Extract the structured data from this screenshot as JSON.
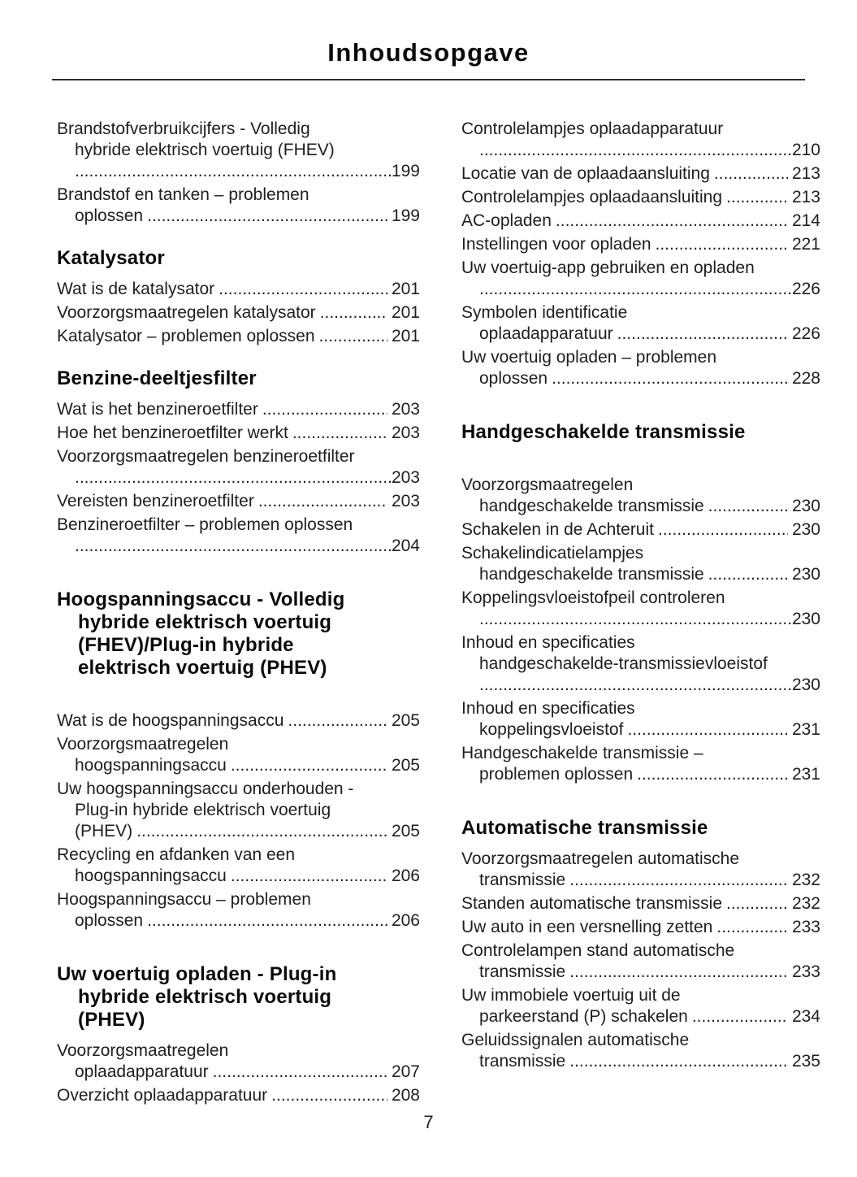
{
  "header": {
    "title": "Inhoudsopgave"
  },
  "footer": {
    "page_number": "7"
  },
  "colors": {
    "background": "#ffffff",
    "text": "#1e1e1e",
    "heading": "#0b0b0b",
    "rule": "#2e2e2e"
  },
  "columns": [
    {
      "blocks": [
        {
          "type": "entry",
          "label": "Brandstofverbruikcijfers - Volledig\nhybride elektrisch voertuig (FHEV)",
          "page": "199",
          "dots_own_line": true
        },
        {
          "type": "entry",
          "label": "Brandstof en tanken – problemen\noplossen",
          "page": "199"
        },
        {
          "type": "heading",
          "text": "Katalysator"
        },
        {
          "type": "entry",
          "label": "Wat is de katalysator",
          "page": "201"
        },
        {
          "type": "entry",
          "label": "Voorzorgsmaatregelen katalysator",
          "page": "201"
        },
        {
          "type": "entry",
          "label": "Katalysator – problemen oplossen",
          "page": "201"
        },
        {
          "type": "heading",
          "text": "Benzine-deeltjesfilter"
        },
        {
          "type": "entry",
          "label": "Wat is het benzineroetfilter",
          "page": "203"
        },
        {
          "type": "entry",
          "label": "Hoe het benzineroetfilter werkt",
          "page": "203"
        },
        {
          "type": "entry",
          "label": "Voorzorgsmaatregelen benzineroetfilter",
          "page": "203",
          "dots_own_line": true
        },
        {
          "type": "entry",
          "label": "Vereisten benzineroetfilter",
          "page": "203"
        },
        {
          "type": "entry",
          "label": "Benzineroetfilter – problemen oplossen",
          "page": "204",
          "dots_own_line": true
        },
        {
          "type": "heading",
          "text": "Hoogspanningsaccu - Volledig\nhybride elektrisch voertuig\n(FHEV)/Plug-in hybride\nelektrisch voertuig (PHEV)",
          "big_top": true,
          "gap_after": true
        },
        {
          "type": "entry",
          "label": "Wat is de hoogspanningsaccu",
          "page": "205"
        },
        {
          "type": "entry",
          "label": "Voorzorgsmaatregelen\nhoogspanningsaccu",
          "page": "205"
        },
        {
          "type": "entry",
          "label": "Uw hoogspanningsaccu onderhouden -\nPlug-in hybride elektrisch voertuig\n(PHEV)",
          "page": "205"
        },
        {
          "type": "entry",
          "label": "Recycling en afdanken van een\nhoogspanningsaccu",
          "page": "206"
        },
        {
          "type": "entry",
          "label": "Hoogspanningsaccu – problemen\noplossen",
          "page": "206"
        },
        {
          "type": "heading",
          "text": "Uw voertuig opladen - Plug-in\nhybride elektrisch voertuig\n(PHEV)",
          "big_top": true
        },
        {
          "type": "entry",
          "label": "Voorzorgsmaatregelen\noplaadapparatuur",
          "page": "207"
        },
        {
          "type": "entry",
          "label": "Overzicht oplaadapparatuur",
          "page": "208"
        }
      ]
    },
    {
      "blocks": [
        {
          "type": "entry",
          "label": "Controlelampjes oplaadapparatuur",
          "page": "210",
          "dots_own_line": true
        },
        {
          "type": "entry",
          "label": "Locatie van de oplaadaansluiting",
          "page": "213"
        },
        {
          "type": "entry",
          "label": "Controlelampjes oplaadaansluiting",
          "page": "213"
        },
        {
          "type": "entry",
          "label": "AC-opladen",
          "page": "214"
        },
        {
          "type": "entry",
          "label": "Instellingen voor opladen",
          "page": "221"
        },
        {
          "type": "entry",
          "label": "Uw voertuig-app gebruiken en opladen",
          "page": "226",
          "dots_own_line": true
        },
        {
          "type": "entry",
          "label": "Symbolen identificatie\noplaadapparatuur",
          "page": "226"
        },
        {
          "type": "entry",
          "label": "Uw voertuig opladen – problemen\noplossen",
          "page": "228"
        },
        {
          "type": "heading",
          "text": "Handgeschakelde transmissie",
          "big_top": true,
          "gap_after": true
        },
        {
          "type": "entry",
          "label": "Voorzorgsmaatregelen\nhandgeschakelde transmissie",
          "page": "230"
        },
        {
          "type": "entry",
          "label": "Schakelen in de Achteruit",
          "page": "230"
        },
        {
          "type": "entry",
          "label": "Schakelindicatielampjes\nhandgeschakelde transmissie",
          "page": "230"
        },
        {
          "type": "entry",
          "label": "Koppelingsvloeistofpeil controleren",
          "page": "230",
          "dots_own_line": true
        },
        {
          "type": "entry",
          "label": "Inhoud en specificaties\nhandgeschakelde-transmissievloeistof",
          "page": "230",
          "dots_own_line": true
        },
        {
          "type": "entry",
          "label": "Inhoud en specificaties\nkoppelingsvloeistof",
          "page": "231"
        },
        {
          "type": "entry",
          "label": "Handgeschakelde transmissie –\nproblemen oplossen",
          "page": "231"
        },
        {
          "type": "heading",
          "text": "Automatische transmissie",
          "big_top": true
        },
        {
          "type": "entry",
          "label": "Voorzorgsmaatregelen automatische\ntransmissie",
          "page": "232"
        },
        {
          "type": "entry",
          "label": "Standen automatische transmissie",
          "page": "232"
        },
        {
          "type": "entry",
          "label": "Uw auto in een versnelling zetten",
          "page": "233"
        },
        {
          "type": "entry",
          "label": "Controlelampen stand automatische\ntransmissie",
          "page": "233"
        },
        {
          "type": "entry",
          "label": "Uw immobiele voertuig uit de\nparkeerstand (P) schakelen",
          "page": "234"
        },
        {
          "type": "entry",
          "label": "Geluidssignalen automatische\ntransmissie",
          "page": "235"
        }
      ]
    }
  ]
}
